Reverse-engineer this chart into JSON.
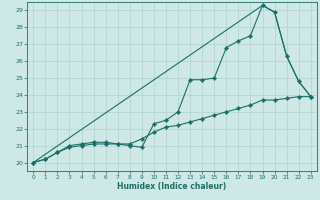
{
  "title": "",
  "xlabel": "Humidex (Indice chaleur)",
  "xlim": [
    -0.5,
    23.5
  ],
  "ylim": [
    19.5,
    29.5
  ],
  "xticks": [
    0,
    1,
    2,
    3,
    4,
    5,
    6,
    7,
    8,
    9,
    10,
    11,
    12,
    13,
    14,
    15,
    16,
    17,
    18,
    19,
    20,
    21,
    22,
    23
  ],
  "yticks": [
    20,
    21,
    22,
    23,
    24,
    25,
    26,
    27,
    28,
    29
  ],
  "background_color": "#cde8e5",
  "grid_color": "#b5d5d2",
  "line_color": "#1a6e68",
  "line1_x": [
    0,
    1,
    2,
    3,
    4,
    5,
    6,
    7,
    8,
    9,
    10,
    11,
    12,
    13,
    14,
    15,
    16,
    17,
    18,
    19,
    20,
    21,
    22,
    23
  ],
  "line1_y": [
    20.0,
    20.2,
    20.6,
    20.9,
    21.0,
    21.1,
    21.1,
    21.1,
    21.0,
    20.9,
    22.3,
    22.5,
    23.0,
    24.9,
    24.9,
    25.0,
    26.8,
    27.2,
    27.5,
    29.3,
    28.9,
    26.3,
    24.8,
    23.9
  ],
  "line2_x": [
    0,
    1,
    2,
    3,
    4,
    5,
    6,
    7,
    8,
    9,
    10,
    11,
    12,
    13,
    14,
    15,
    16,
    17,
    18,
    19,
    20,
    21,
    22,
    23
  ],
  "line2_y": [
    20.0,
    20.2,
    20.6,
    21.0,
    21.1,
    21.2,
    21.2,
    21.1,
    21.1,
    21.4,
    21.8,
    22.1,
    22.2,
    22.4,
    22.6,
    22.8,
    23.0,
    23.2,
    23.4,
    23.7,
    23.7,
    23.8,
    23.9,
    23.9
  ],
  "line3_x": [
    0,
    19,
    20,
    21,
    22,
    23
  ],
  "line3_y": [
    20.0,
    29.3,
    28.9,
    26.3,
    24.8,
    23.9
  ]
}
